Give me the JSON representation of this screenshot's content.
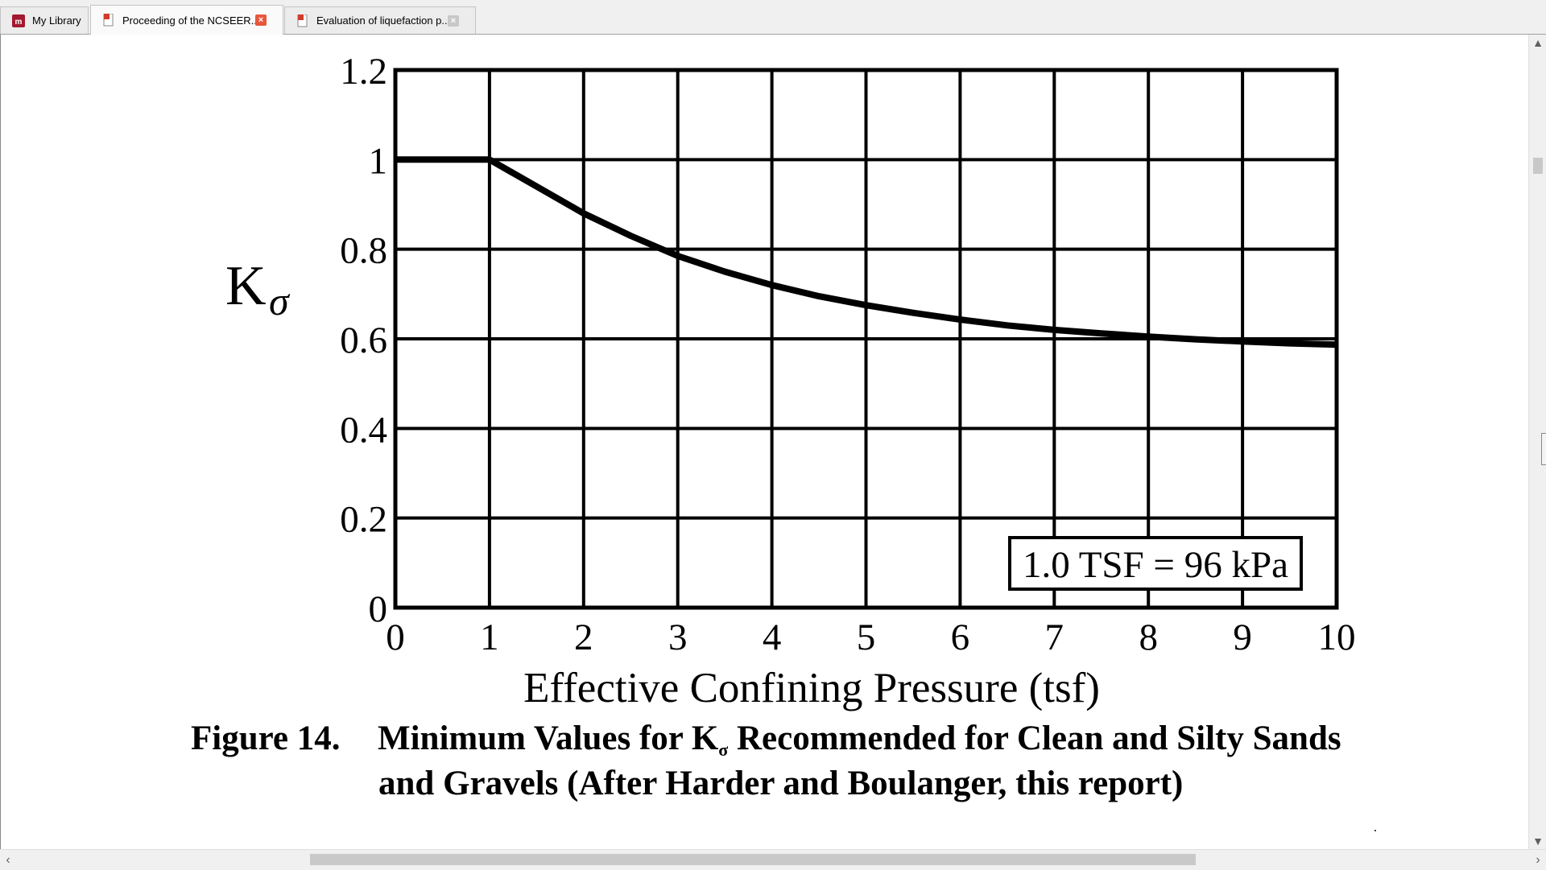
{
  "tabs": [
    {
      "label": "My Library",
      "icon": "library-icon",
      "active": false,
      "closable": false
    },
    {
      "label": "Proceeding of the NCSEER...",
      "icon": "pdf-icon",
      "active": true,
      "closable": true
    },
    {
      "label": "Evaluation of liquefaction p...",
      "icon": "pdf-icon",
      "active": false,
      "closable": true
    }
  ],
  "colors": {
    "close_active": "#e8573c",
    "close_inactive": "#c8c8c8",
    "pdf_icon": "#d23a2c",
    "library_icon": "#a3192f"
  },
  "chart_data": {
    "type": "line",
    "ylabel": "K",
    "ylabel_sub": "σ",
    "xlabel": "Effective Confining Pressure  (tsf)",
    "xlim": [
      0,
      10
    ],
    "ylim": [
      0,
      1.2
    ],
    "x_ticks": [
      "0",
      "1",
      "2",
      "3",
      "4",
      "5",
      "6",
      "7",
      "8",
      "9",
      "10"
    ],
    "y_ticks": [
      "0",
      "0.2",
      "0.4",
      "0.6",
      "0.8",
      "1",
      "1.2"
    ],
    "grid": true,
    "annotation": "1.0 TSF = 96 kPa",
    "series": [
      {
        "x": [
          0,
          1,
          1.5,
          2,
          2.5,
          3,
          3.5,
          4,
          4.5,
          5,
          5.5,
          6,
          6.5,
          7,
          7.5,
          8,
          8.5,
          9,
          9.5,
          10
        ],
        "y": [
          1.0,
          1.0,
          0.94,
          0.88,
          0.83,
          0.785,
          0.75,
          0.72,
          0.695,
          0.675,
          0.658,
          0.643,
          0.63,
          0.62,
          0.612,
          0.605,
          0.599,
          0.594,
          0.59,
          0.587
        ]
      }
    ]
  },
  "caption": {
    "head": "Figure 14.",
    "line1_pre": "Minimum Values for K",
    "line1_sub": "σ",
    "line1_post": " Recommended for Clean and Silty Sands",
    "line2": "and Gravels (After Harder and Boulanger, this report)"
  }
}
